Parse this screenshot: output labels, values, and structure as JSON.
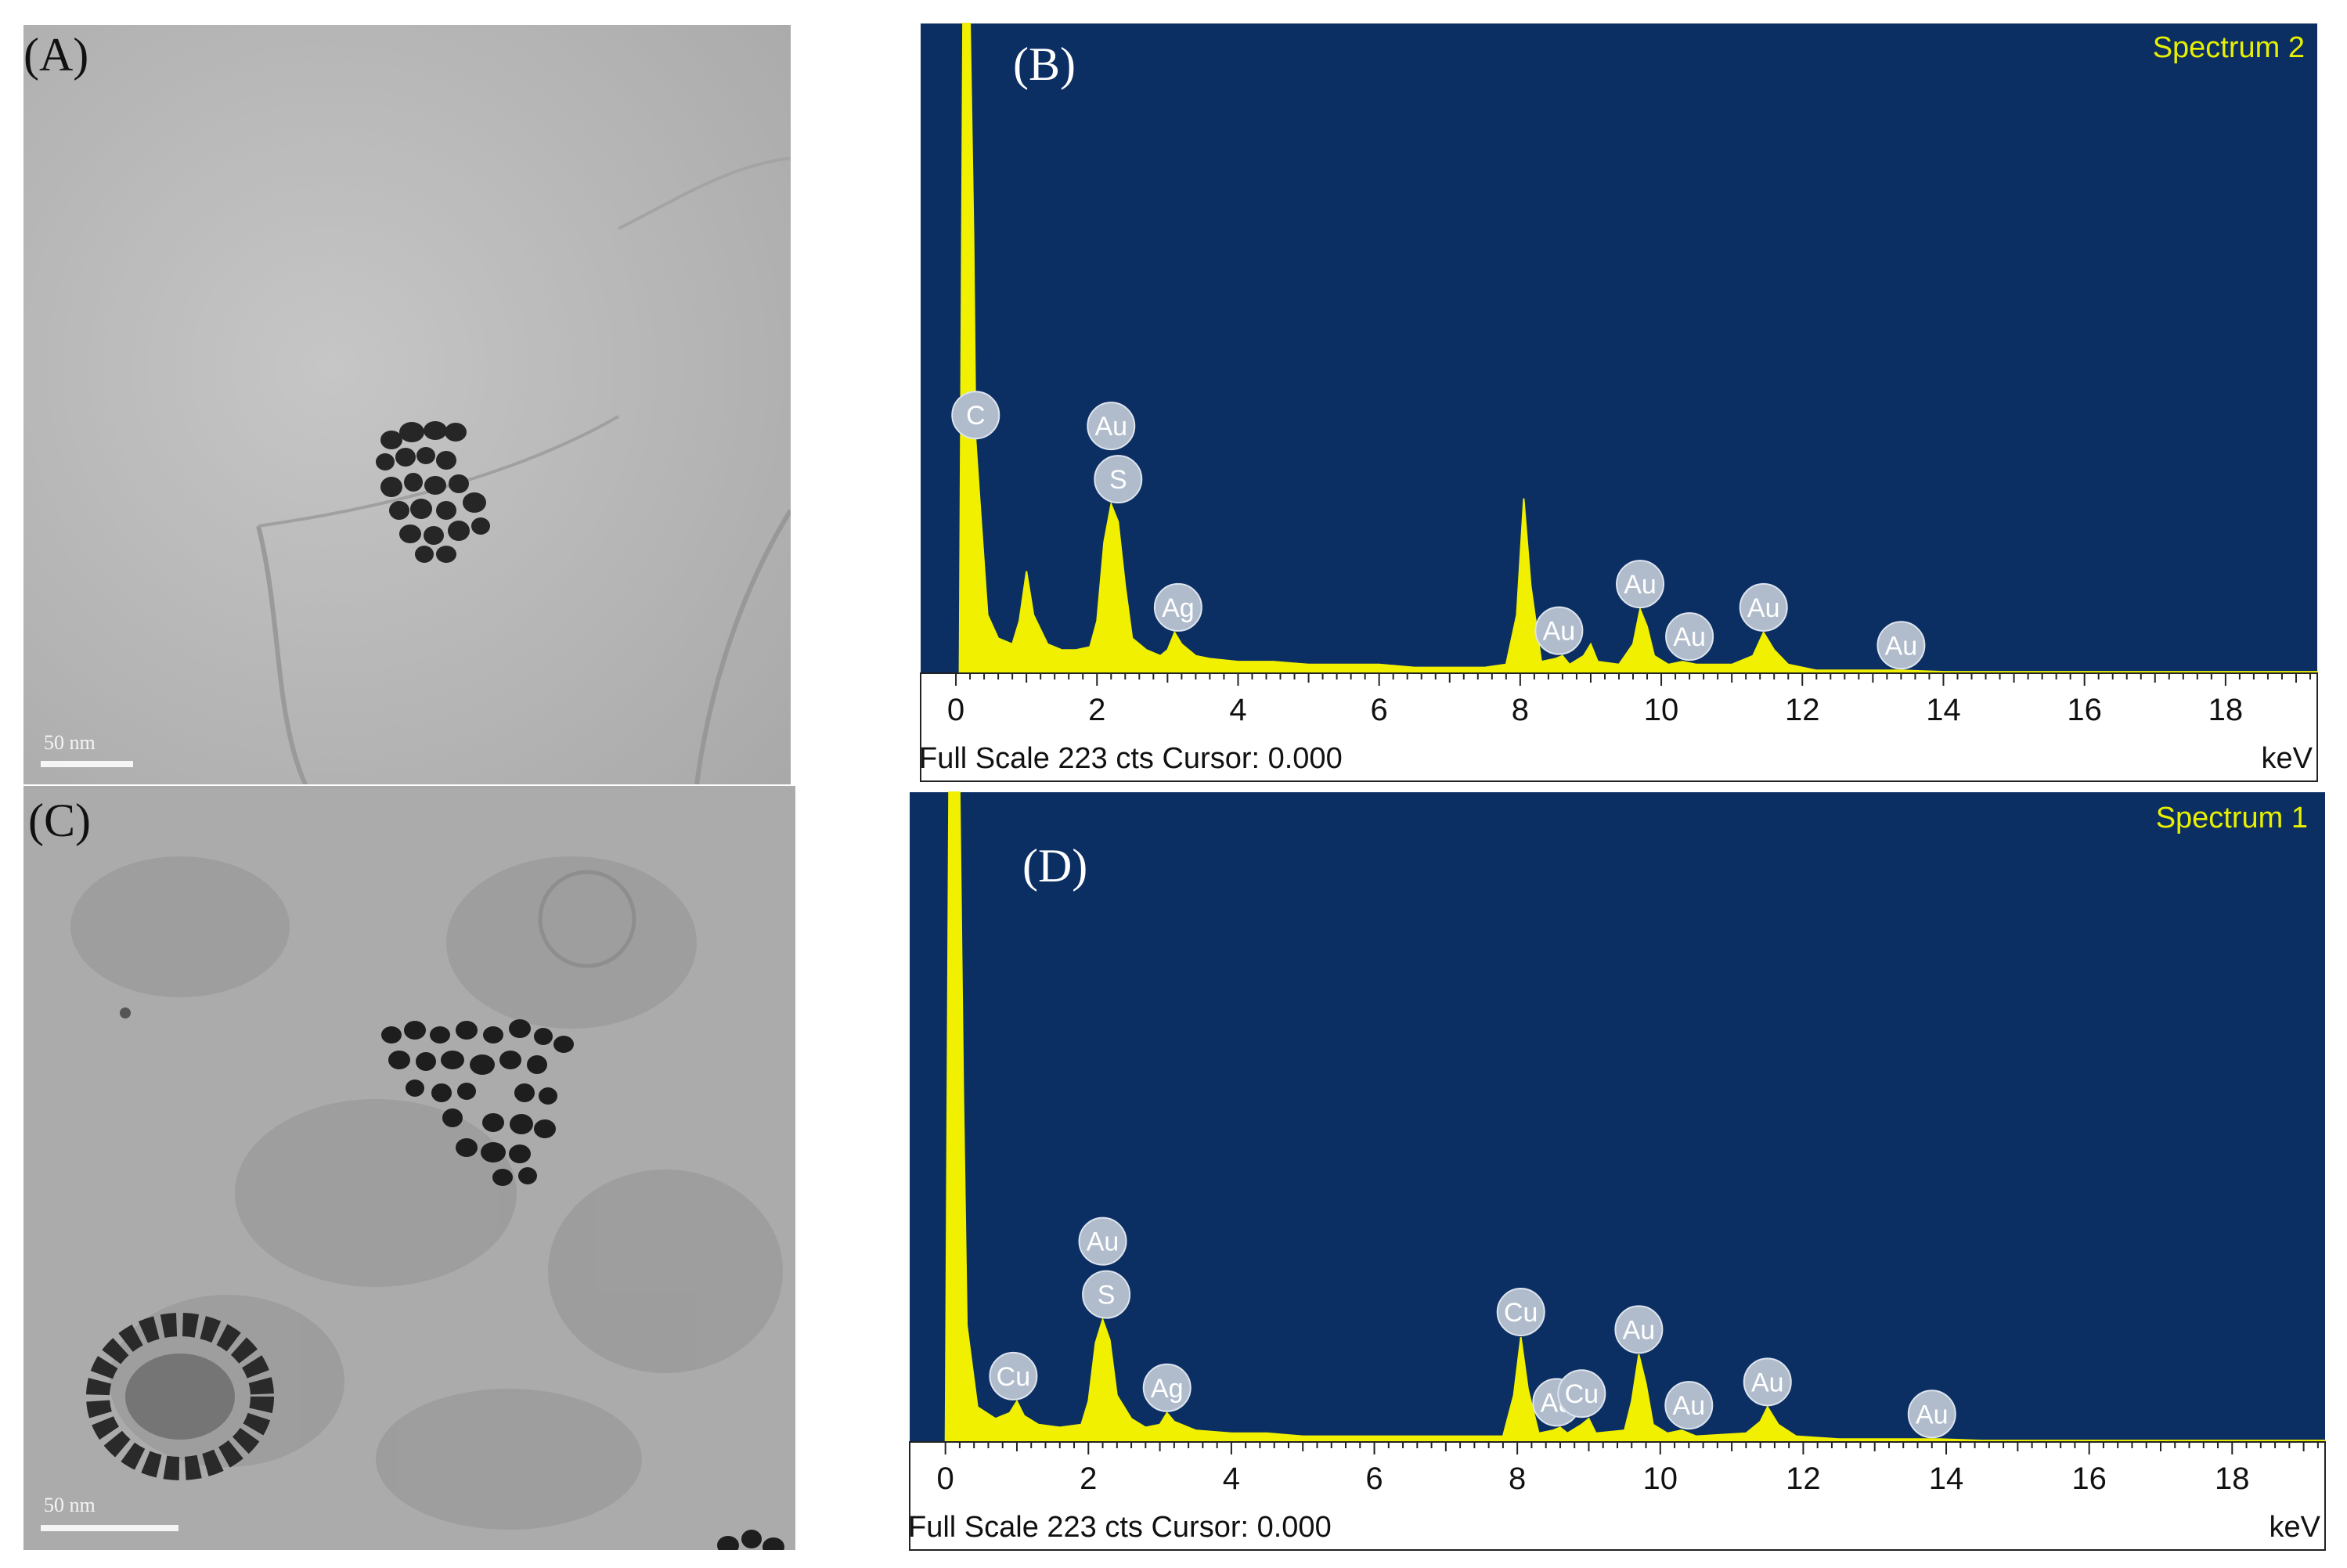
{
  "panels": {
    "a": {
      "label": "(A)",
      "scale_bar": "50 nm"
    },
    "b": {
      "label": "(B)"
    },
    "c": {
      "label": "(C)",
      "scale_bar": "50 nm"
    },
    "d": {
      "label": "(D)"
    }
  },
  "colors": {
    "plot_background": "#0b2e63",
    "spectrum_fill": "#f0f000",
    "peak_label_bubble": "#b0bccb",
    "peak_label_text": "#ffffff"
  },
  "chart_data": [
    {
      "type": "area",
      "panel": "B",
      "title": "Spectrum 2",
      "xlabel": "keV",
      "footer": "Full Scale 223 cts Cursor: 0.000",
      "xlim": [
        -0.5,
        19.3
      ],
      "ylim": [
        0,
        223
      ],
      "x_ticks": [
        0,
        2,
        4,
        6,
        8,
        10,
        12,
        14,
        16,
        18
      ],
      "spectrum": [
        [
          0,
          0
        ],
        [
          0.05,
          0
        ],
        [
          0.1,
          223
        ],
        [
          0.2,
          223
        ],
        [
          0.25,
          150
        ],
        [
          0.28,
          80
        ],
        [
          0.35,
          55
        ],
        [
          0.45,
          20
        ],
        [
          0.6,
          12
        ],
        [
          0.8,
          10
        ],
        [
          0.9,
          18
        ],
        [
          1.0,
          35
        ],
        [
          1.1,
          20
        ],
        [
          1.3,
          10
        ],
        [
          1.5,
          8
        ],
        [
          1.7,
          8
        ],
        [
          1.9,
          9
        ],
        [
          2.0,
          18
        ],
        [
          2.1,
          45
        ],
        [
          2.2,
          58
        ],
        [
          2.3,
          52
        ],
        [
          2.4,
          30
        ],
        [
          2.5,
          12
        ],
        [
          2.7,
          8
        ],
        [
          2.9,
          6
        ],
        [
          3.0,
          8
        ],
        [
          3.1,
          14
        ],
        [
          3.2,
          10
        ],
        [
          3.4,
          6
        ],
        [
          3.6,
          5
        ],
        [
          4.0,
          4
        ],
        [
          4.5,
          4
        ],
        [
          5.0,
          3
        ],
        [
          5.5,
          3
        ],
        [
          6.0,
          3
        ],
        [
          6.5,
          2
        ],
        [
          7.0,
          2
        ],
        [
          7.5,
          2
        ],
        [
          7.8,
          3
        ],
        [
          7.95,
          20
        ],
        [
          8.05,
          60
        ],
        [
          8.15,
          30
        ],
        [
          8.3,
          4
        ],
        [
          8.5,
          5
        ],
        [
          8.6,
          6
        ],
        [
          8.7,
          3
        ],
        [
          8.9,
          6
        ],
        [
          9.0,
          10
        ],
        [
          9.1,
          4
        ],
        [
          9.4,
          3
        ],
        [
          9.6,
          10
        ],
        [
          9.7,
          22
        ],
        [
          9.8,
          16
        ],
        [
          9.9,
          6
        ],
        [
          10.1,
          3
        ],
        [
          10.3,
          4
        ],
        [
          10.5,
          3
        ],
        [
          11.0,
          3
        ],
        [
          11.3,
          6
        ],
        [
          11.45,
          14
        ],
        [
          11.6,
          8
        ],
        [
          11.8,
          3
        ],
        [
          12.2,
          1
        ],
        [
          13.0,
          1
        ],
        [
          13.4,
          1
        ],
        [
          14.0,
          0.5
        ],
        [
          16.0,
          0.5
        ],
        [
          19.3,
          0.5
        ]
      ],
      "peak_labels": [
        {
          "element": "C",
          "x": 0.28,
          "y": 80,
          "level": 1
        },
        {
          "element": "S",
          "x": 2.3,
          "y": 58,
          "level": 1
        },
        {
          "element": "Au",
          "x": 2.2,
          "y": 58,
          "level": 2
        },
        {
          "element": "Ag",
          "x": 3.15,
          "y": 14,
          "level": 1
        },
        {
          "element": "Au",
          "x": 8.55,
          "y": 6,
          "level": 1
        },
        {
          "element": "Au",
          "x": 9.7,
          "y": 22,
          "level": 1
        },
        {
          "element": "Au",
          "x": 10.4,
          "y": 4,
          "level": 1
        },
        {
          "element": "Au",
          "x": 11.45,
          "y": 14,
          "level": 1
        },
        {
          "element": "Au",
          "x": 13.4,
          "y": 1,
          "level": 1
        }
      ]
    },
    {
      "type": "area",
      "panel": "D",
      "title": "Spectrum 1",
      "xlabel": "keV",
      "footer": "Full Scale 223 cts Cursor: 0.000",
      "xlim": [
        -0.5,
        19.3
      ],
      "ylim": [
        0,
        223
      ],
      "x_ticks": [
        0,
        2,
        4,
        6,
        8,
        10,
        12,
        14,
        16,
        18
      ],
      "spectrum": [
        [
          0,
          0
        ],
        [
          0.0,
          0
        ],
        [
          0.05,
          223
        ],
        [
          0.2,
          223
        ],
        [
          0.25,
          120
        ],
        [
          0.3,
          40
        ],
        [
          0.45,
          12
        ],
        [
          0.7,
          8
        ],
        [
          0.9,
          10
        ],
        [
          1.0,
          14
        ],
        [
          1.1,
          9
        ],
        [
          1.3,
          6
        ],
        [
          1.6,
          5
        ],
        [
          1.9,
          6
        ],
        [
          2.0,
          14
        ],
        [
          2.1,
          34
        ],
        [
          2.2,
          42
        ],
        [
          2.3,
          35
        ],
        [
          2.4,
          16
        ],
        [
          2.6,
          8
        ],
        [
          2.8,
          5
        ],
        [
          3.0,
          6
        ],
        [
          3.1,
          10
        ],
        [
          3.2,
          7
        ],
        [
          3.5,
          4
        ],
        [
          4.0,
          3
        ],
        [
          4.5,
          3
        ],
        [
          5.0,
          2
        ],
        [
          6.0,
          2
        ],
        [
          7.0,
          2
        ],
        [
          7.8,
          2
        ],
        [
          7.95,
          16
        ],
        [
          8.05,
          36
        ],
        [
          8.15,
          18
        ],
        [
          8.3,
          3
        ],
        [
          8.5,
          4
        ],
        [
          8.6,
          5
        ],
        [
          8.7,
          3
        ],
        [
          8.9,
          6
        ],
        [
          9.0,
          8
        ],
        [
          9.1,
          3
        ],
        [
          9.5,
          4
        ],
        [
          9.6,
          14
        ],
        [
          9.7,
          30
        ],
        [
          9.8,
          20
        ],
        [
          9.9,
          6
        ],
        [
          10.1,
          3
        ],
        [
          10.3,
          4
        ],
        [
          10.5,
          2
        ],
        [
          11.2,
          3
        ],
        [
          11.4,
          7
        ],
        [
          11.5,
          12
        ],
        [
          11.65,
          6
        ],
        [
          11.9,
          2
        ],
        [
          12.5,
          1
        ],
        [
          13.5,
          1
        ],
        [
          13.9,
          1
        ],
        [
          14.5,
          0.5
        ],
        [
          19.3,
          0.5
        ]
      ],
      "peak_labels": [
        {
          "element": "Cu",
          "x": 0.95,
          "y": 14,
          "level": 1
        },
        {
          "element": "S",
          "x": 2.25,
          "y": 42,
          "level": 1
        },
        {
          "element": "Au",
          "x": 2.2,
          "y": 42,
          "level": 2
        },
        {
          "element": "Ag",
          "x": 3.1,
          "y": 10,
          "level": 1
        },
        {
          "element": "Cu",
          "x": 8.05,
          "y": 36,
          "level": 1
        },
        {
          "element": "Au",
          "x": 8.55,
          "y": 5,
          "level": 1
        },
        {
          "element": "Cu",
          "x": 8.9,
          "y": 8,
          "level": 1
        },
        {
          "element": "Au",
          "x": 9.7,
          "y": 30,
          "level": 1
        },
        {
          "element": "Au",
          "x": 10.4,
          "y": 4,
          "level": 1
        },
        {
          "element": "Au",
          "x": 11.5,
          "y": 12,
          "level": 1
        },
        {
          "element": "Au",
          "x": 13.8,
          "y": 1,
          "level": 1
        }
      ]
    }
  ]
}
